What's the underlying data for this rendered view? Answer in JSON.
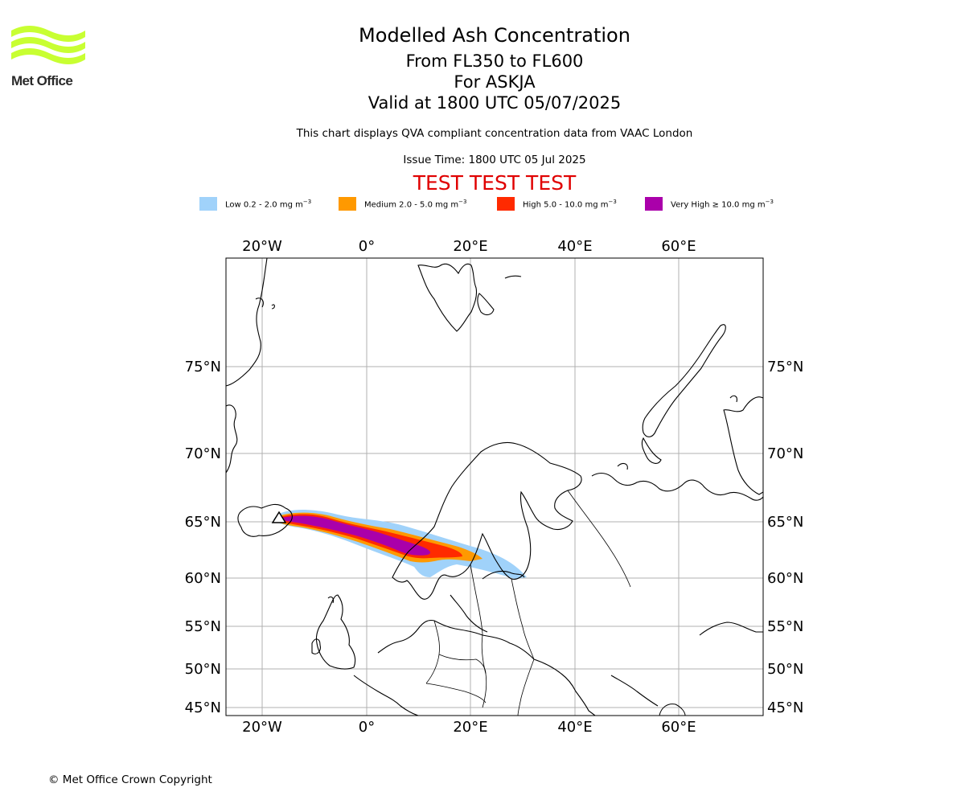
{
  "logo": {
    "text": "Met Office",
    "icon": "met-office-wave-logo",
    "color": "#c8ff32"
  },
  "header": {
    "title": "Modelled Ash Concentration",
    "levels": "From FL350 to FL600",
    "volcano": "For ASKJA",
    "validity": "Valid at 1800 UTC 05/07/2025",
    "description": "This chart displays QVA compliant concentration data from VAAC London",
    "issue_time": "Issue Time: 1800 UTC 05 Jul 2025",
    "test_banner": "TEST TEST TEST",
    "test_banner_color": "#e00000"
  },
  "legend": [
    {
      "label": "Low 0.2 - 2.0 mg m",
      "exp": "−3",
      "color": "#a0d2fa"
    },
    {
      "label": "Medium 2.0 - 5.0 mg m",
      "exp": "−3",
      "color": "#ff9900"
    },
    {
      "label": "High 5.0 - 10.0 mg m",
      "exp": "−3",
      "color": "#ff2a00"
    },
    {
      "label": "Very High  ≥  10.0 mg m",
      "exp": "−3",
      "color": "#aa00aa"
    }
  ],
  "map": {
    "lon_labels": [
      "20°W",
      "0°",
      "20°E",
      "40°E",
      "60°E"
    ],
    "lat_labels": [
      "75°N",
      "70°N",
      "65°N",
      "60°N",
      "55°N",
      "50°N",
      "45°N"
    ],
    "volcano_marker": "triangle-marker"
  },
  "footer": {
    "copyright": "© Met Office Crown Copyright"
  }
}
